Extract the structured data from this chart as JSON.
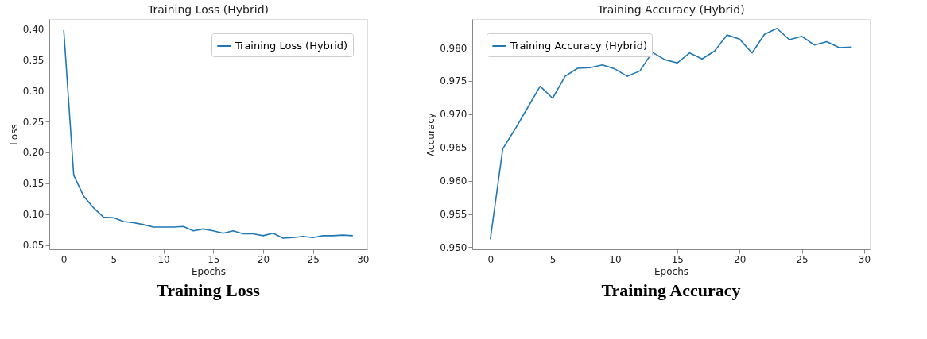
{
  "chart_data": [
    {
      "type": "line",
      "title": "Training Loss (Hybrid)",
      "xlabel": "Epochs",
      "ylabel": "Loss",
      "x": [
        0,
        1,
        2,
        3,
        4,
        5,
        6,
        7,
        8,
        9,
        10,
        11,
        12,
        13,
        14,
        15,
        16,
        17,
        18,
        19,
        20,
        21,
        22,
        23,
        24,
        25,
        26,
        27,
        28,
        29
      ],
      "series": [
        {
          "name": "Training Loss (Hybrid)",
          "color": "#1f77b4",
          "values": [
            0.398,
            0.163,
            0.129,
            0.11,
            0.095,
            0.094,
            0.088,
            0.086,
            0.083,
            0.079,
            0.079,
            0.079,
            0.08,
            0.073,
            0.076,
            0.073,
            0.069,
            0.073,
            0.068,
            0.068,
            0.065,
            0.069,
            0.061,
            0.062,
            0.064,
            0.062,
            0.065,
            0.065,
            0.066,
            0.065
          ]
        }
      ],
      "xlim": [
        -1.45,
        30.45
      ],
      "xticks": [
        0,
        5,
        10,
        15,
        20,
        25,
        30
      ],
      "ylim": [
        0.043,
        0.416
      ],
      "yticks": [
        0.05,
        {
          "value": 0.1,
          "label": "0.10"
        },
        0.15,
        {
          "value": 0.2,
          "label": "0.20"
        },
        0.25,
        {
          "value": 0.3,
          "label": "0.30"
        },
        0.35,
        {
          "value": 0.4,
          "label": "0.40"
        }
      ],
      "legend": "top right",
      "grid": false,
      "marker": "none",
      "line_style": "solid",
      "annotations": [
        "Training Loss"
      ]
    },
    {
      "type": "line",
      "title": "Training Accuracy (Hybrid)",
      "xlabel": "Epochs",
      "ylabel": "Accuracy",
      "x": [
        0,
        1,
        2,
        3,
        4,
        5,
        6,
        7,
        8,
        9,
        10,
        11,
        12,
        13,
        14,
        15,
        16,
        17,
        18,
        19,
        20,
        21,
        22,
        23,
        24,
        25,
        26,
        27,
        28,
        29
      ],
      "series": [
        {
          "name": "Training Accuracy (Hybrid)",
          "color": "#1f77b4",
          "values": [
            0.9512,
            0.9648,
            0.9678,
            0.971,
            0.9742,
            0.9724,
            0.9757,
            0.9769,
            0.977,
            0.9774,
            0.9768,
            0.9757,
            0.9765,
            0.9793,
            0.9782,
            0.9777,
            0.9792,
            0.9783,
            0.9795,
            0.9819,
            0.9813,
            0.9792,
            0.982,
            0.9829,
            0.9812,
            0.9817,
            0.9804,
            0.9809,
            0.98,
            0.9801
          ]
        }
      ],
      "xlim": [
        -1.45,
        30.45
      ],
      "xticks": [
        0,
        5,
        10,
        15,
        20,
        25,
        30
      ],
      "ylim": [
        0.9497,
        0.9843
      ],
      "yticks": [
        {
          "value": 0.95,
          "label": "0.950"
        },
        0.955,
        {
          "value": 0.96,
          "label": "0.960"
        },
        0.965,
        {
          "value": 0.97,
          "label": "0.970"
        },
        0.975,
        {
          "value": 0.98,
          "label": "0.980"
        }
      ],
      "legend": "top left",
      "grid": false,
      "marker": "none",
      "line_style": "solid",
      "annotations": [
        "Training Accuracy"
      ]
    }
  ]
}
